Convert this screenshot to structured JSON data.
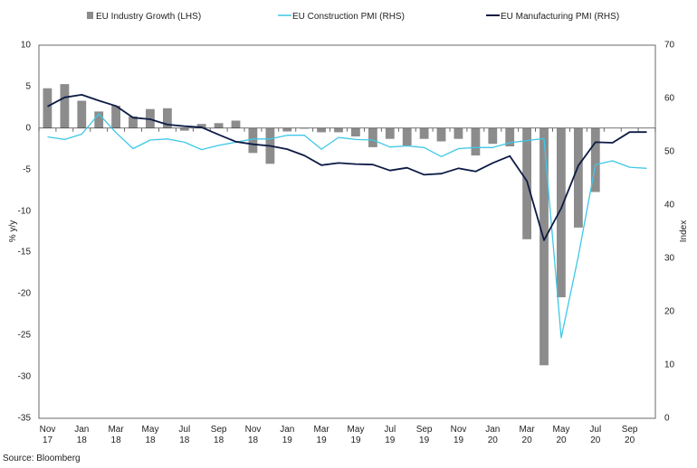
{
  "chart_data": {
    "type": "bar+line",
    "title": "",
    "source": "Source: Bloomberg",
    "legend": [
      {
        "key": "industry",
        "label": "EU Industry Growth (LHS)",
        "color": "#8c8c8c",
        "kind": "bar"
      },
      {
        "key": "construction",
        "label": "EU Construction PMI (RHS)",
        "color": "#3ec8e6",
        "kind": "line"
      },
      {
        "key": "manufacturing",
        "label": "EU Manufacturing PMI (RHS)",
        "color": "#0d1b45",
        "kind": "line"
      }
    ],
    "left_axis": {
      "label": "% y/y",
      "min": -35,
      "max": 10,
      "ticks": [
        "10",
        "5",
        "0",
        "-5",
        "-10",
        "-15",
        "-20",
        "-25",
        "-30",
        "-35"
      ]
    },
    "right_axis": {
      "label": "Index",
      "min": 0,
      "max": 70,
      "ticks": [
        "70",
        "60",
        "50",
        "40",
        "30",
        "20",
        "10",
        "0"
      ]
    },
    "x_tick_labels": [
      {
        "index": 0,
        "month": "Nov",
        "year": "17"
      },
      {
        "index": 2,
        "month": "Jan",
        "year": "18"
      },
      {
        "index": 4,
        "month": "Mar",
        "year": "18"
      },
      {
        "index": 6,
        "month": "May",
        "year": "18"
      },
      {
        "index": 8,
        "month": "Jul",
        "year": "18"
      },
      {
        "index": 10,
        "month": "Sep",
        "year": "18"
      },
      {
        "index": 12,
        "month": "Nov",
        "year": "18"
      },
      {
        "index": 14,
        "month": "Jan",
        "year": "19"
      },
      {
        "index": 16,
        "month": "Mar",
        "year": "19"
      },
      {
        "index": 18,
        "month": "May",
        "year": "19"
      },
      {
        "index": 20,
        "month": "Jul",
        "year": "19"
      },
      {
        "index": 22,
        "month": "Sep",
        "year": "19"
      },
      {
        "index": 24,
        "month": "Nov",
        "year": "19"
      },
      {
        "index": 26,
        "month": "Jan",
        "year": "20"
      },
      {
        "index": 28,
        "month": "Mar",
        "year": "20"
      },
      {
        "index": 30,
        "month": "May",
        "year": "20"
      },
      {
        "index": 32,
        "month": "Jul",
        "year": "20"
      },
      {
        "index": 34,
        "month": "Sep",
        "year": "20"
      }
    ],
    "categories": [
      "Nov 17",
      "Dec 17",
      "Jan 18",
      "Feb 18",
      "Mar 18",
      "Apr 18",
      "May 18",
      "Jun 18",
      "Jul 18",
      "Aug 18",
      "Sep 18",
      "Oct 18",
      "Nov 18",
      "Dec 18",
      "Jan 19",
      "Feb 19",
      "Mar 19",
      "Apr 19",
      "May 19",
      "Jun 19",
      "Jul 19",
      "Aug 19",
      "Sep 19",
      "Oct 19",
      "Nov 19",
      "Dec 19",
      "Jan 20",
      "Feb 20",
      "Mar 20",
      "Apr 20",
      "May 20",
      "Jun 20",
      "Jul 20",
      "Aug 20",
      "Sep 20",
      "Oct 20"
    ],
    "series": [
      {
        "name": "EU Industry Growth (LHS)",
        "key": "industry",
        "axis": "left",
        "values": [
          4.8,
          5.3,
          3.3,
          2.0,
          2.7,
          1.4,
          2.3,
          2.4,
          -0.3,
          0.5,
          0.6,
          0.9,
          -3.0,
          -4.3,
          -0.4,
          0.0,
          -0.5,
          -0.5,
          -1.0,
          -2.3,
          -1.3,
          -2.1,
          -1.3,
          -1.6,
          -1.3,
          -3.3,
          -1.9,
          -2.2,
          -13.4,
          -28.6,
          -20.4,
          -12.0,
          -7.7,
          null,
          null,
          null
        ]
      },
      {
        "name": "EU Construction PMI (RHS)",
        "key": "construction",
        "axis": "right",
        "values": [
          52.8,
          52.3,
          53.3,
          57.1,
          53.6,
          50.6,
          52.2,
          52.4,
          51.8,
          50.4,
          51.2,
          51.8,
          52.4,
          52.4,
          53.1,
          53.1,
          50.5,
          52.7,
          52.3,
          52.2,
          50.9,
          51.1,
          50.8,
          49.1,
          50.6,
          50.8,
          50.8,
          51.7,
          52.1,
          52.5,
          15.1,
          30.4,
          47.6,
          48.3,
          47.1,
          46.9
        ]
      },
      {
        "name": "EU Manufacturing PMI (RHS)",
        "key": "manufacturing",
        "axis": "right",
        "values": [
          58.5,
          60.2,
          60.7,
          59.6,
          58.6,
          56.4,
          56.1,
          55.1,
          54.8,
          54.6,
          53.2,
          51.9,
          51.4,
          51.1,
          50.5,
          49.3,
          47.5,
          47.9,
          47.7,
          47.6,
          46.5,
          47.0,
          45.7,
          45.9,
          46.9,
          46.3,
          47.9,
          49.2,
          44.5,
          33.4,
          39.4,
          47.4,
          51.8,
          51.7,
          53.7,
          53.7
        ]
      }
    ]
  }
}
